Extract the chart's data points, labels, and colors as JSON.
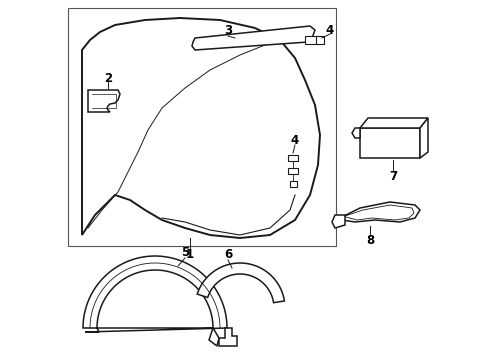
{
  "bg_color": "#ffffff",
  "line_color": "#1a1a1a",
  "line_width": 1.1,
  "label_fontsize": 8.5,
  "label_color": "#000000",
  "fig_width": 4.9,
  "fig_height": 3.6,
  "dpi": 100
}
